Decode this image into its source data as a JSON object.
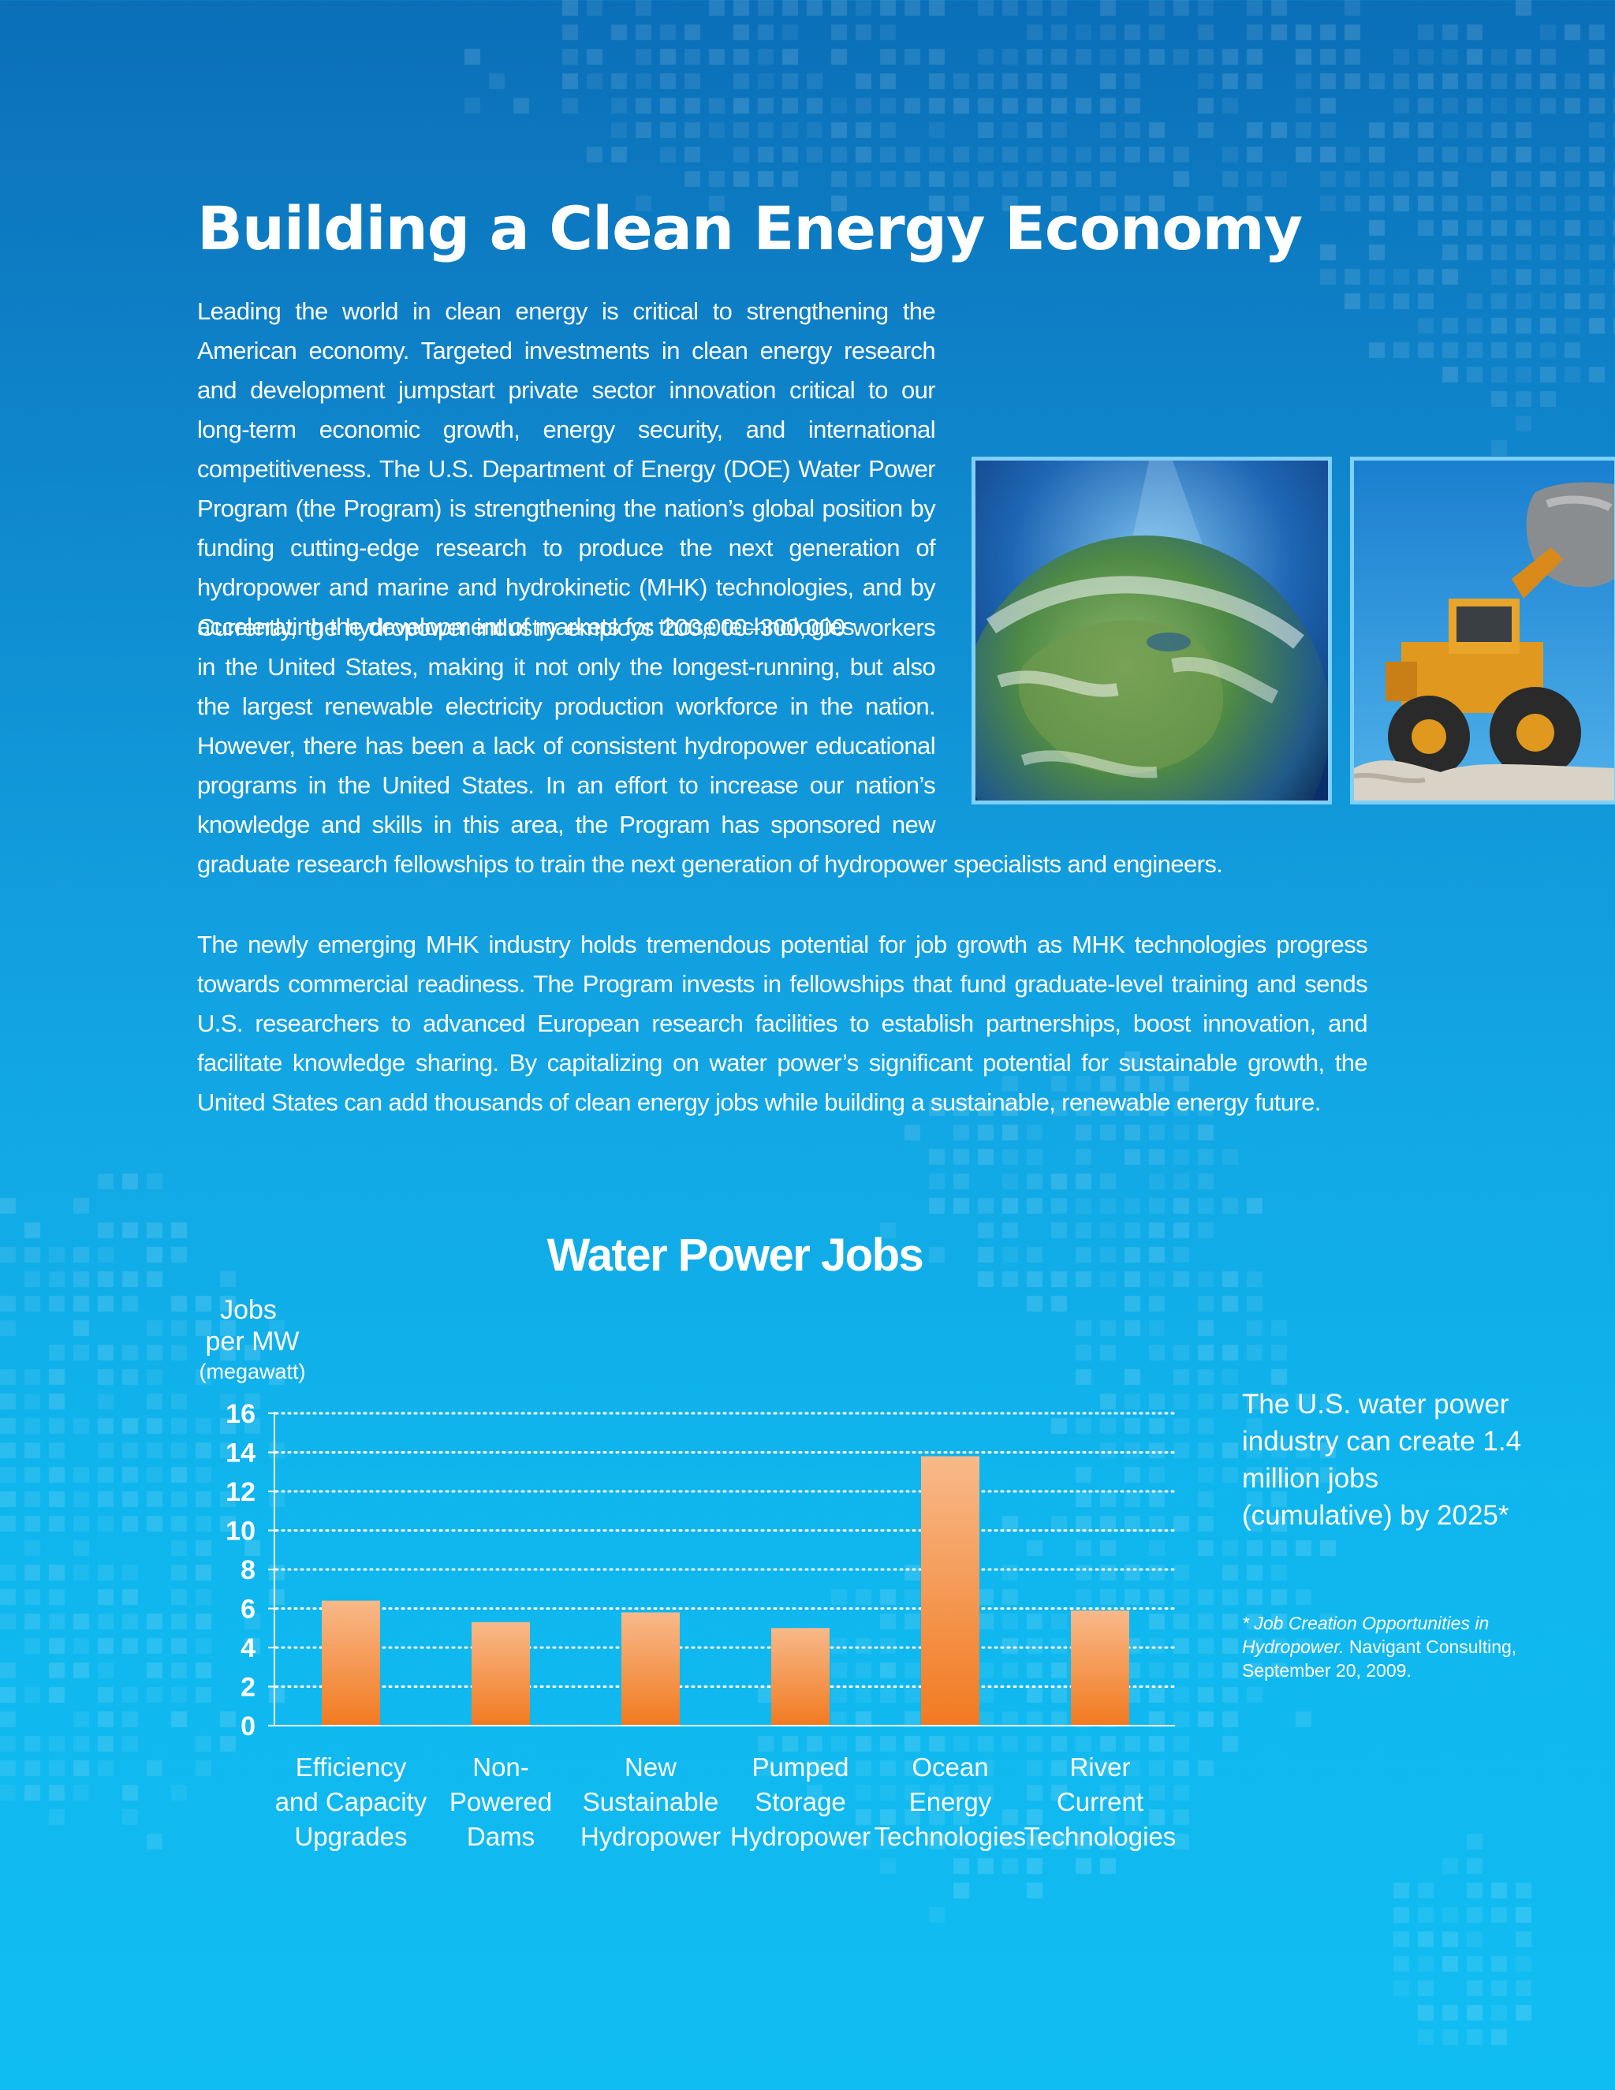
{
  "page": {
    "title": "Building a Clean Energy Economy",
    "paragraphs": [
      "Leading the world in clean energy is critical to strengthening the American economy. Targeted investments in clean energy research and development jumpstart private sector innovation critical to our long-term economic growth, energy security, and international competitiveness. The U.S. Department of Energy (DOE) Water Power Program (the Program) is strengthening the nation’s global position by funding cutting-edge research to produce the next generation of hydropower and marine and hydrokinetic (MHK) technologies, and by accelerating the development of markets for those technologies.",
      "Currently, the hydropower industry employs 200,000–300,000 workers in the United States, making it not only the longest-running, but also the largest renewable electricity production workforce in the nation. However, there has been a lack of consistent hydropower educational programs in the United States. In an effort to increase our nation’s knowledge and skills in this area, the Program has sponsored new graduate research fellowships to train the next generation of hydropower specialists and engineers.",
      "The newly emerging MHK industry holds tremendous potential for job growth as MHK technologies progress towards commercial readiness. The Program invests in fellowships that fund graduate-level training and sends U.S. researchers to advanced European research facilities to establish partnerships, boost innovation, and facilitate knowledge sharing. By capitalizing on water power’s significant potential for sustainable growth, the United States can add thousands of clean energy jobs while building a sustainable, renewable energy future."
    ],
    "images": [
      "earth-from-space-photo",
      "wheel-loader-photo"
    ]
  },
  "chart_data": {
    "type": "bar",
    "title": "Water Power Jobs",
    "ylabel": [
      "Jobs",
      "per MW",
      "(megawatt)"
    ],
    "categories": [
      [
        "Efficiency",
        "and Capacity",
        "Upgrades"
      ],
      [
        "Non-",
        "Powered",
        "Dams"
      ],
      [
        "New",
        "Sustainable",
        "Hydropower"
      ],
      [
        "Pumped",
        "Storage",
        "Hydropower"
      ],
      [
        "Ocean",
        "Energy",
        "Technologies"
      ],
      [
        "River",
        "Current",
        "Technologies"
      ]
    ],
    "values": [
      6.4,
      5.3,
      5.8,
      5.0,
      13.8,
      5.9
    ],
    "ylim": [
      0,
      16
    ],
    "yticks": [
      0,
      2,
      4,
      6,
      8,
      10,
      12,
      14,
      16
    ],
    "grid": "dotted horizontal",
    "bar_color_top": "#f8b98a",
    "bar_color_bottom": "#f27a20"
  },
  "sidebar": {
    "note": "The U.S. water power industry can create 1.4 million jobs (cumulative) by 2025*",
    "footnote_italic": "* Job Creation Opportunities in Hydropower.",
    "footnote_rest": " Navigant Consulting, September 20, 2009."
  },
  "colors": {
    "background_top": "#0a6fb8",
    "background_bottom": "#10bdf2",
    "photo_border": "#7fd0f6",
    "text": "#ffffff"
  }
}
